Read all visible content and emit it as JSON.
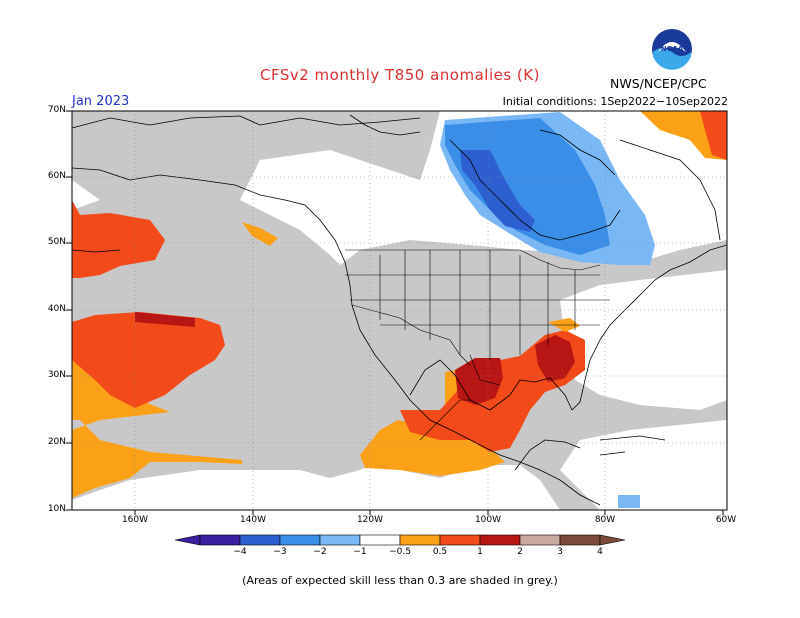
{
  "title": "CFSv2 monthly T850 anomalies (K)",
  "month_label": "Jan 2023",
  "initial_conditions": "Initial conditions: 1Sep2022−10Sep2022",
  "agency": "NWS/NCEP/CPC",
  "logo": {
    "text": "NOAA",
    "icon": "noaa-logo-icon"
  },
  "latitude_labels": [
    "70N",
    "60N",
    "50N",
    "40N",
    "30N",
    "20N",
    "10N"
  ],
  "longitude_labels": [
    "160W",
    "140W",
    "120W",
    "100W",
    "80W",
    "60W"
  ],
  "colorbar": {
    "ticks": [
      "−4",
      "−3",
      "−2",
      "−1",
      "−0.5",
      "0.5",
      "1",
      "2",
      "3",
      "4"
    ],
    "colors": [
      "#3a1fa0",
      "#2e5fd0",
      "#3a8ee8",
      "#79b8f5",
      "#ffffff",
      "#fba118",
      "#f24a18",
      "#b81515",
      "#c9a89e",
      "#7a4a3a"
    ]
  },
  "footnote": "(Areas of expected skill less than 0.3 are shaded in grey.)",
  "colors": {
    "grey": "#c8c8c8",
    "title": "#d93030",
    "month": "#2233cc"
  }
}
